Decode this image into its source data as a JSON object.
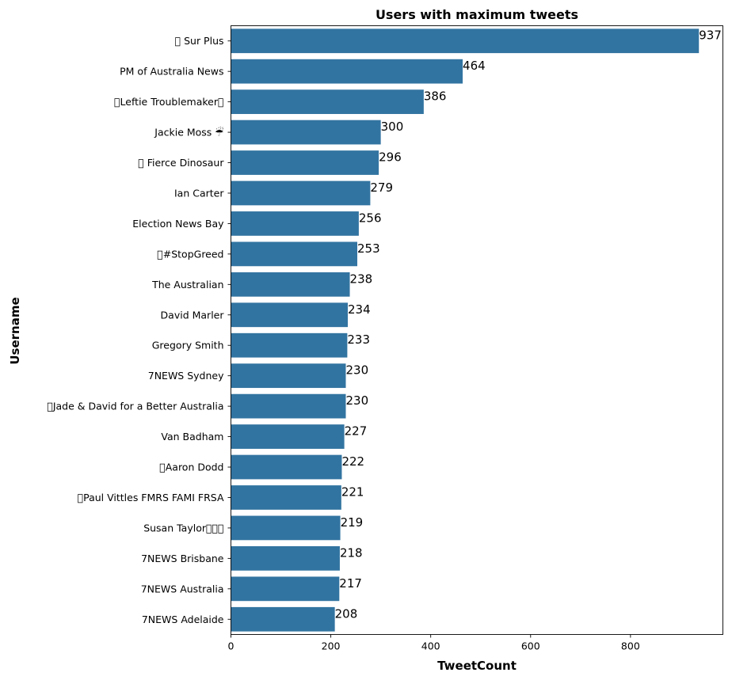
{
  "chart_data": {
    "type": "bar",
    "orientation": "horizontal",
    "title": "Users with maximum tweets",
    "xlabel": "TweetCount",
    "ylabel": "Username",
    "xlim": [
      0,
      985
    ],
    "xticks": [
      0,
      200,
      400,
      600,
      800
    ],
    "grid": false,
    "bar_color": "#3274a1",
    "categories": [
      "\u0000 Sur Plus",
      "PM of Australia News",
      "\u0000Leftie Troublemaker\u0000",
      "Jackie Moss ☔",
      "\u0000 Fierce Dinosaur",
      "Ian Carter",
      "Election News Bay",
      "\u0000#StopGreed",
      "The Australian",
      "David Marler",
      "Gregory Smith",
      "7NEWS Sydney",
      "\u0000Jade & David for a Better Australia",
      "Van Badham",
      "\u0000Aaron Dodd",
      "\u0000Paul Vittles FMRS FAMI FRSA",
      "Susan Taylor\u0000\u0000\u0000",
      "7NEWS Brisbane",
      "7NEWS Australia",
      "7NEWS Adelaide"
    ],
    "values": [
      937,
      464,
      386,
      300,
      296,
      279,
      256,
      253,
      238,
      234,
      233,
      230,
      230,
      227,
      222,
      221,
      219,
      218,
      217,
      208
    ]
  }
}
